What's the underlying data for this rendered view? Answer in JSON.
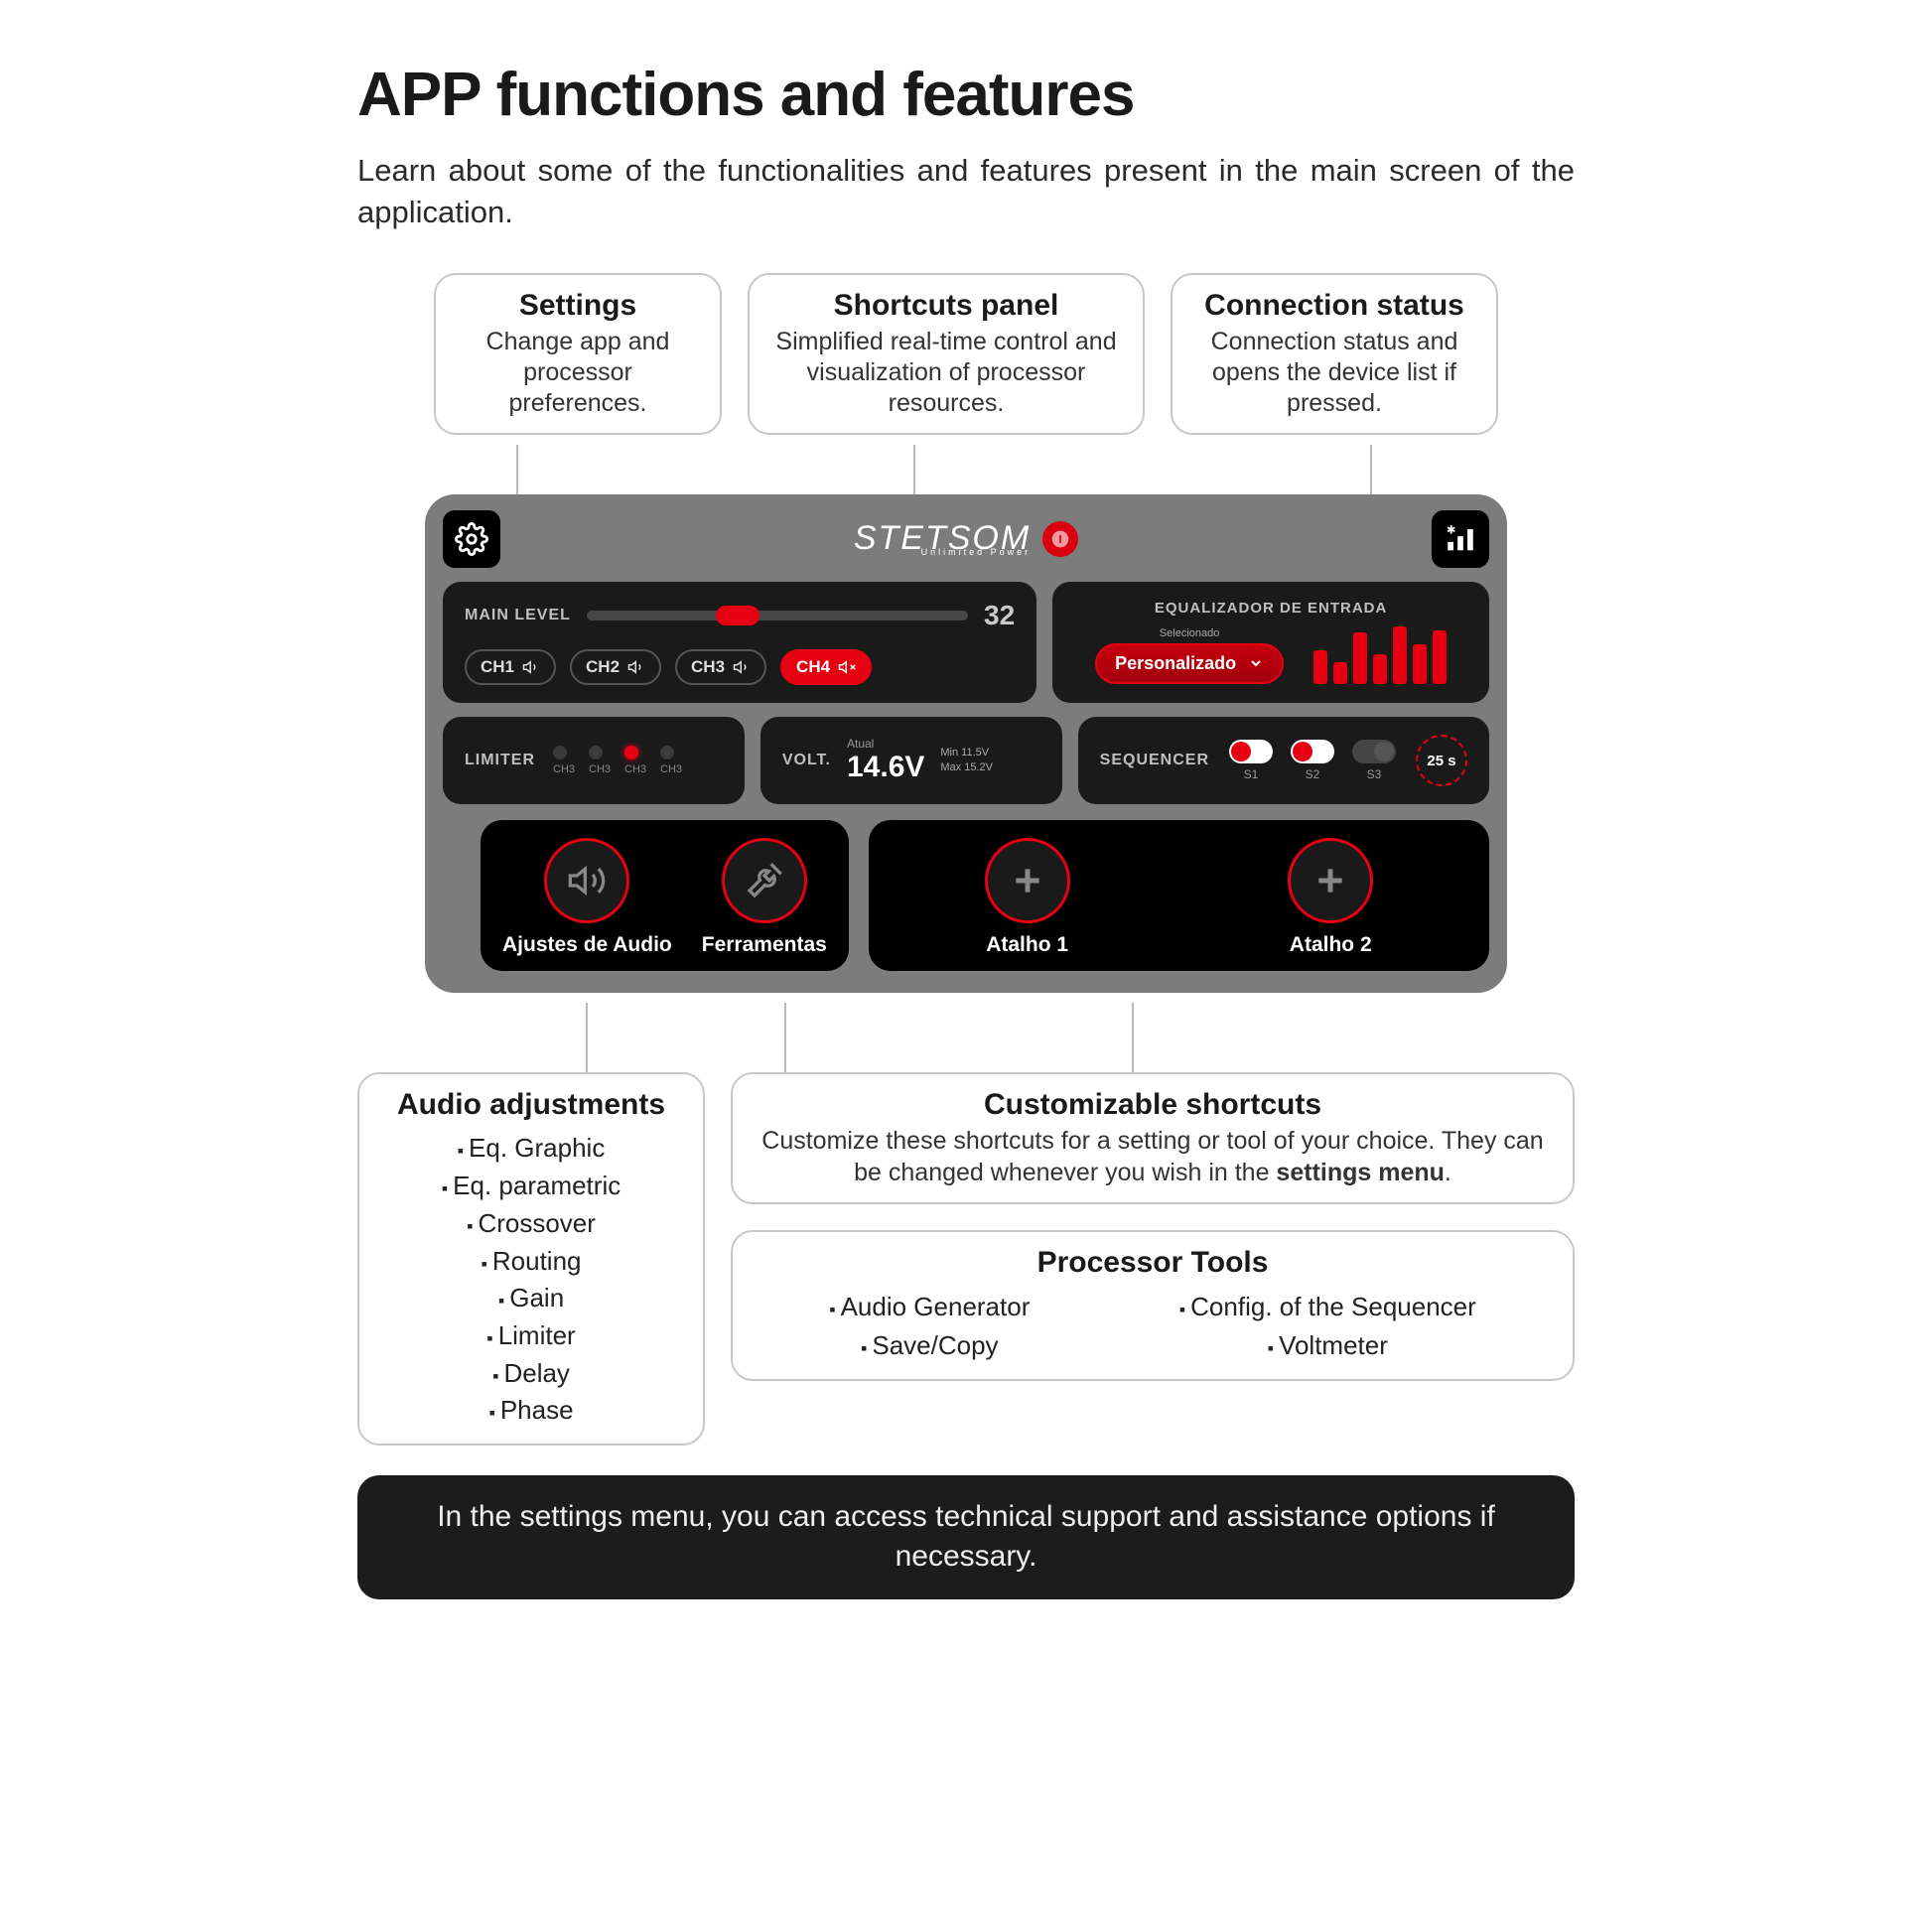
{
  "page": {
    "title": "APP functions and features",
    "intro": "Learn about some of the functionalities and features present in the main screen of the application."
  },
  "brand": {
    "name": "STETSOM",
    "tagline": "Unlimited Power"
  },
  "callouts_top": [
    {
      "title": "Settings",
      "desc": "Change app and processor preferences."
    },
    {
      "title": "Shortcuts panel",
      "desc": "Simplified real-time control and visualization of processor resources."
    },
    {
      "title": "Connection status",
      "desc": "Connection status and opens the device list if pressed."
    }
  ],
  "main_level": {
    "label": "MAIN LEVEL",
    "value": "32",
    "slider_percent": 34
  },
  "channels": [
    {
      "name": "CH1",
      "muted": false,
      "active": false
    },
    {
      "name": "CH2",
      "muted": false,
      "active": false
    },
    {
      "name": "CH3",
      "muted": false,
      "active": false
    },
    {
      "name": "CH4",
      "muted": true,
      "active": true
    }
  ],
  "equalizer": {
    "title": "EQUALIZADOR DE ENTRADA",
    "selected_label": "Selecionado",
    "selected_value": "Personalizado",
    "bars": [
      34,
      22,
      52,
      30,
      58,
      40,
      54
    ]
  },
  "limiter": {
    "label": "LIMITER",
    "leds": [
      {
        "label": "CH3",
        "on": false
      },
      {
        "label": "CH3",
        "on": false
      },
      {
        "label": "CH3",
        "on": true
      },
      {
        "label": "CH3",
        "on": false
      }
    ]
  },
  "volt": {
    "label": "VOLT.",
    "current_label": "Atual",
    "current": "14.6V",
    "min_label": "Min 11.5V",
    "max_label": "Max 15.2V"
  },
  "sequencer": {
    "label": "SEQUENCER",
    "switches": [
      {
        "label": "S1",
        "on": true
      },
      {
        "label": "S2",
        "on": true
      },
      {
        "label": "S3",
        "on": false
      }
    ],
    "timer": "25 s"
  },
  "quick_buttons": {
    "audio": {
      "label": "Ajustes de Audio"
    },
    "tools": {
      "label": "Ferramentas"
    },
    "short1": {
      "label": "Atalho 1"
    },
    "short2": {
      "label": "Atalho 2"
    }
  },
  "callouts_bottom": {
    "audio_adjustments": {
      "title": "Audio adjustments",
      "items": [
        "Eq. Graphic",
        "Eq. parametric",
        "Crossover",
        "Routing",
        "Gain",
        "Limiter",
        "Delay",
        "Phase"
      ]
    },
    "custom_shortcuts": {
      "title": "Customizable shortcuts",
      "desc_a": "Customize these shortcuts for a setting or tool of your choice. They can be changed whenever you wish in the ",
      "desc_b": "settings menu",
      "desc_c": "."
    },
    "processor_tools": {
      "title": "Processor Tools",
      "left": [
        "Audio Generator",
        "Save/Copy"
      ],
      "right": [
        "Config. of the Sequencer",
        "Voltmeter"
      ]
    }
  },
  "banner": "In the settings menu, you can access technical support and assistance options if necessary.",
  "colors": {
    "accent": "#e60012",
    "device_bg": "#7c7c7c",
    "panel_bg": "#1a1a1a"
  }
}
